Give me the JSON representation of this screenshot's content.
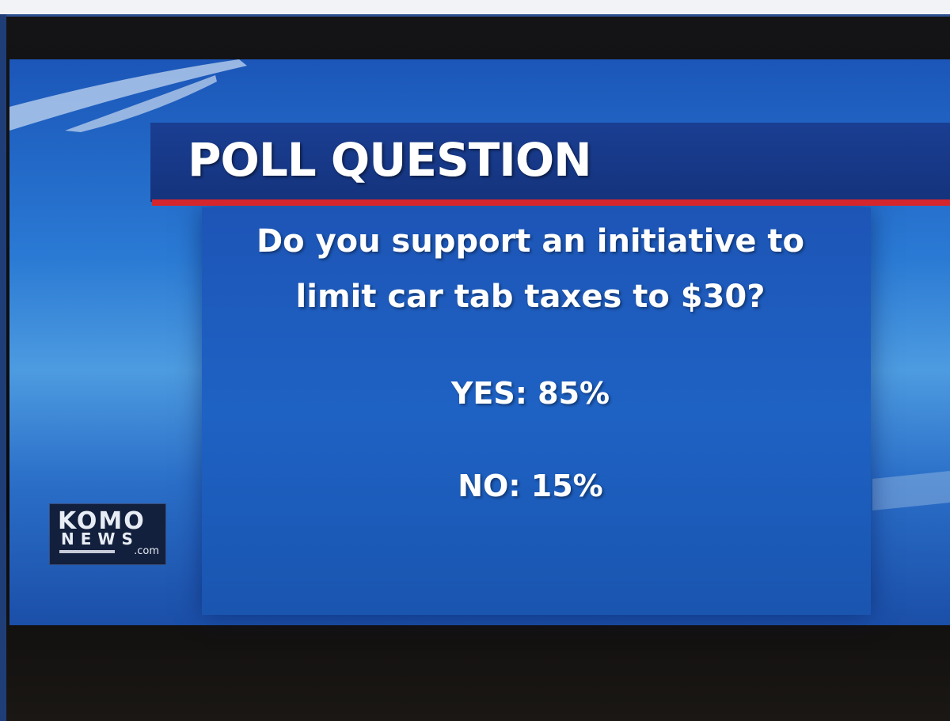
{
  "screen": {
    "title": "POLL QUESTION",
    "question": [
      "Do you support an initiative to",
      "limit car tab taxes to $30?"
    ],
    "answers": [
      "YES: 85%",
      "NO: 15%"
    ],
    "logo": {
      "line1": "KOMO",
      "line2": "NEWS",
      "line3": ".com"
    }
  }
}
